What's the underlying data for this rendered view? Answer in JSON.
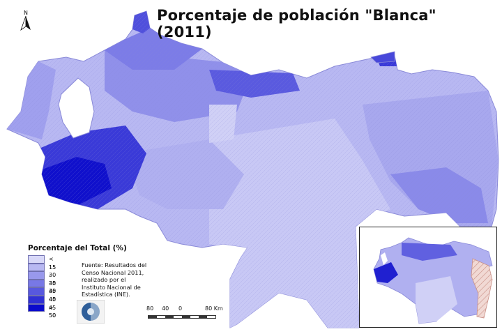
{
  "title": "Porcentaje de población \"Blanca\" (2011)",
  "north_label": "N",
  "legend": {
    "title": "Porcentaje del Total (%)",
    "classes": [
      {
        "label": "< 15",
        "color": "#d8d8f8"
      },
      {
        "label": "15 - 30",
        "color": "#b8b8f2"
      },
      {
        "label": "30 - 35",
        "color": "#9898ec"
      },
      {
        "label": "35 - 40",
        "color": "#7878e6"
      },
      {
        "label": "40 - 45",
        "color": "#5858de"
      },
      {
        "label": "45 - 50",
        "color": "#3030d4"
      },
      {
        "label": "> 50",
        "color": "#0a0acc"
      }
    ]
  },
  "source": "Fuente: Resultados del Censo Nacional 2011, realizado por el Instituto Nacional de Estadística (INE).",
  "logo_icon": "ine-logo-icon",
  "scale_bar": {
    "ticks": [
      "80",
      "40",
      "0",
      "80 Km"
    ]
  },
  "colors": {
    "sea": "#ffffff",
    "lake": "#ffffff",
    "border": "#8a8ad8",
    "claimed_area": "#f1d9d4",
    "claimed_hatch": "#c98f86"
  }
}
